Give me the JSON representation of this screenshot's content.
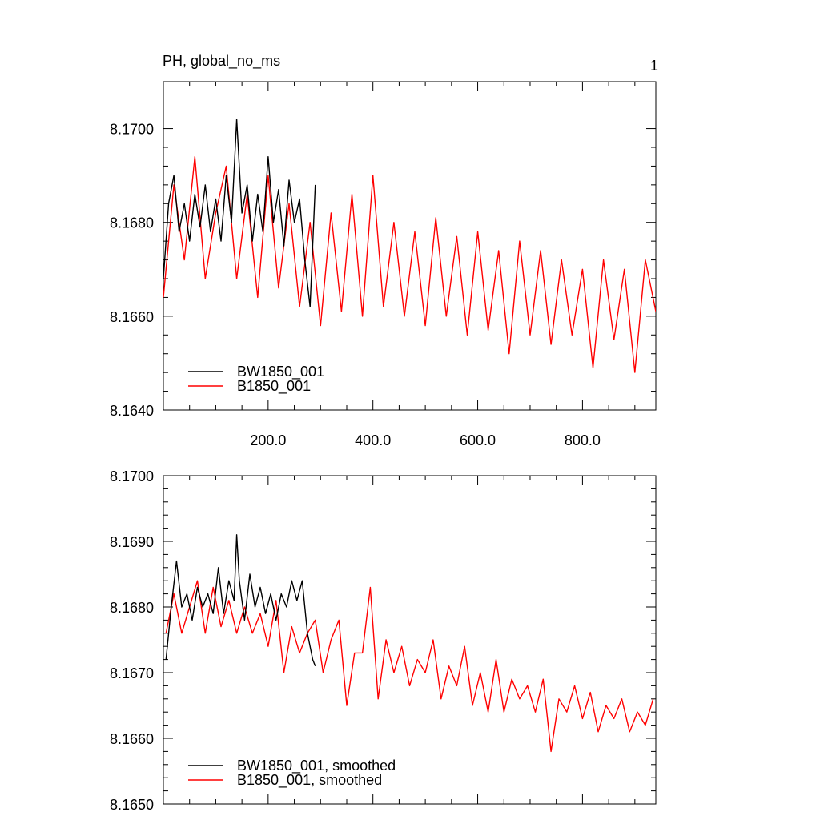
{
  "figure": {
    "title": "PH, global_no_ms",
    "corner_label": "1"
  },
  "chart_data": [
    {
      "type": "line",
      "panel": "top",
      "xlim": [
        0,
        940
      ],
      "ylim": [
        8.164,
        8.171
      ],
      "x_ticks": [
        200,
        400,
        600,
        800
      ],
      "x_tick_labels": [
        "200.0",
        "400.0",
        "600.0",
        "800.0"
      ],
      "y_ticks": [
        8.164,
        8.166,
        8.168,
        8.17
      ],
      "y_tick_labels": [
        "8.1640",
        "8.1660",
        "8.1680",
        "8.1700"
      ],
      "grid": false,
      "legend_position": "bottom-left",
      "series": [
        {
          "name": "BW1850_001",
          "color": "#000000",
          "x": [
            0,
            10,
            20,
            30,
            40,
            50,
            60,
            70,
            80,
            90,
            100,
            110,
            120,
            130,
            140,
            150,
            160,
            170,
            180,
            190,
            200,
            210,
            220,
            230,
            240,
            250,
            260,
            270,
            280,
            290
          ],
          "y": [
            8.1668,
            8.1684,
            8.169,
            8.1678,
            8.1684,
            8.1676,
            8.1686,
            8.1679,
            8.1688,
            8.1678,
            8.1685,
            8.1676,
            8.169,
            8.168,
            8.1702,
            8.1682,
            8.1688,
            8.1676,
            8.1686,
            8.1678,
            8.1694,
            8.168,
            8.1687,
            8.1675,
            8.1689,
            8.168,
            8.1685,
            8.1672,
            8.1662,
            8.1688
          ]
        },
        {
          "name": "B1850_001",
          "color": "#ff0000",
          "x": [
            0,
            20,
            40,
            60,
            80,
            100,
            120,
            140,
            160,
            180,
            200,
            220,
            240,
            260,
            280,
            300,
            320,
            340,
            360,
            380,
            400,
            420,
            440,
            460,
            480,
            500,
            520,
            540,
            560,
            580,
            600,
            620,
            640,
            660,
            680,
            700,
            720,
            740,
            760,
            780,
            800,
            820,
            840,
            860,
            880,
            900,
            920,
            940
          ],
          "y": [
            8.1664,
            8.1688,
            8.1672,
            8.1694,
            8.1668,
            8.1682,
            8.1692,
            8.1668,
            8.1686,
            8.1664,
            8.169,
            8.1666,
            8.1684,
            8.1662,
            8.168,
            8.1658,
            8.1682,
            8.1661,
            8.1686,
            8.166,
            8.169,
            8.1662,
            8.168,
            8.166,
            8.1678,
            8.1658,
            8.1681,
            8.166,
            8.1677,
            8.1656,
            8.1678,
            8.1657,
            8.1674,
            8.1652,
            8.1676,
            8.1656,
            8.1674,
            8.1654,
            8.1672,
            8.1656,
            8.167,
            8.1649,
            8.1672,
            8.1655,
            8.167,
            8.1648,
            8.1672,
            8.1661
          ]
        }
      ]
    },
    {
      "type": "line",
      "panel": "bottom",
      "xlim": [
        0,
        940
      ],
      "ylim": [
        8.165,
        8.17
      ],
      "x_ticks": [
        200,
        400,
        600,
        800
      ],
      "y_ticks": [
        8.165,
        8.166,
        8.167,
        8.168,
        8.169,
        8.17
      ],
      "y_tick_labels": [
        "8.1650",
        "8.1660",
        "8.1670",
        "8.1680",
        "8.1690",
        "8.1700"
      ],
      "grid": false,
      "legend_position": "bottom-left",
      "series": [
        {
          "name": "BW1850_001, smoothed",
          "color": "#000000",
          "x": [
            5,
            15,
            25,
            35,
            45,
            55,
            65,
            75,
            85,
            95,
            105,
            115,
            125,
            135,
            140,
            145,
            155,
            165,
            175,
            185,
            195,
            205,
            215,
            225,
            235,
            245,
            255,
            265,
            275,
            285,
            290
          ],
          "y": [
            8.1672,
            8.168,
            8.1687,
            8.168,
            8.1682,
            8.1678,
            8.1683,
            8.168,
            8.1682,
            8.1679,
            8.1686,
            8.1679,
            8.1684,
            8.1681,
            8.1691,
            8.1684,
            8.1678,
            8.1685,
            8.168,
            8.1683,
            8.1679,
            8.1682,
            8.1678,
            8.1682,
            8.168,
            8.1684,
            8.1681,
            8.1684,
            8.1676,
            8.1672,
            8.1671
          ]
        },
        {
          "name": "B1850_001, smoothed",
          "color": "#ff0000",
          "x": [
            5,
            20,
            35,
            50,
            65,
            80,
            95,
            110,
            125,
            140,
            155,
            170,
            185,
            200,
            215,
            230,
            245,
            260,
            275,
            290,
            305,
            320,
            335,
            350,
            365,
            380,
            395,
            410,
            425,
            440,
            455,
            470,
            485,
            500,
            515,
            530,
            545,
            560,
            575,
            590,
            605,
            620,
            635,
            650,
            665,
            680,
            695,
            710,
            725,
            740,
            755,
            770,
            785,
            800,
            815,
            830,
            845,
            860,
            875,
            890,
            905,
            920,
            935
          ],
          "y": [
            8.1676,
            8.1682,
            8.1676,
            8.168,
            8.1684,
            8.1676,
            8.1683,
            8.1677,
            8.1681,
            8.1676,
            8.168,
            8.1676,
            8.1679,
            8.1674,
            8.1681,
            8.167,
            8.1677,
            8.1673,
            8.1676,
            8.1678,
            8.167,
            8.1675,
            8.1678,
            8.1665,
            8.1673,
            8.1673,
            8.1683,
            8.1666,
            8.1675,
            8.167,
            8.1674,
            8.1668,
            8.1672,
            8.167,
            8.1675,
            8.1666,
            8.1671,
            8.1668,
            8.1674,
            8.1665,
            8.167,
            8.1664,
            8.1672,
            8.1664,
            8.1669,
            8.1666,
            8.1668,
            8.1664,
            8.1669,
            8.1658,
            8.1666,
            8.1664,
            8.1668,
            8.1663,
            8.1667,
            8.1661,
            8.1665,
            8.1663,
            8.1666,
            8.1661,
            8.1664,
            8.1662,
            8.1666
          ]
        }
      ]
    }
  ]
}
